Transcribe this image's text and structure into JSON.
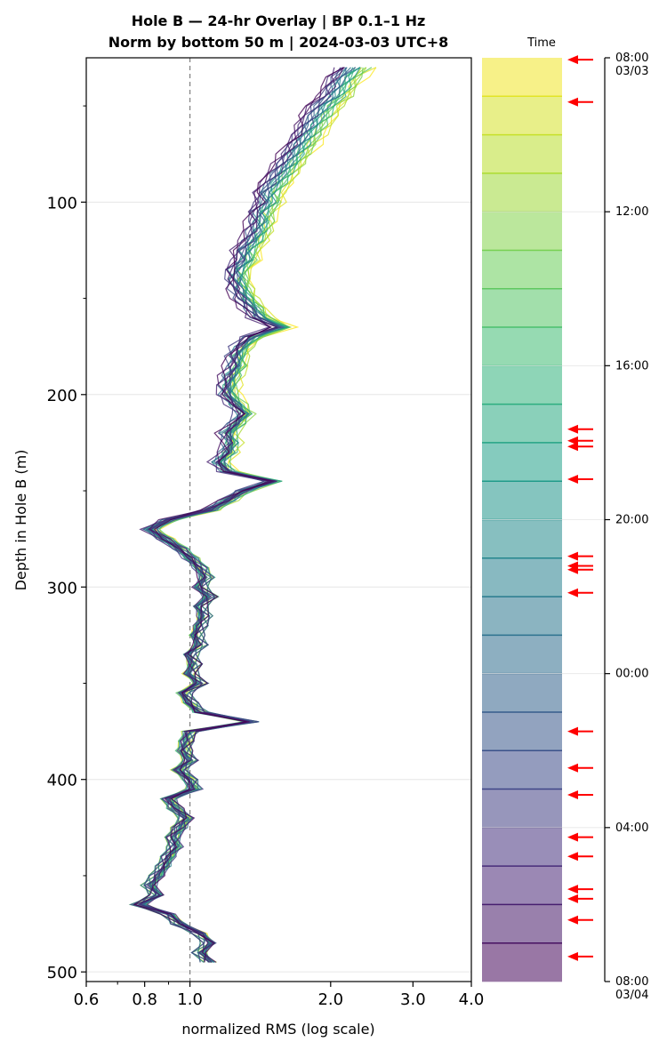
{
  "title_line1": "Hole B — 24-hr Overlay  |  BP 0.1–1 Hz",
  "title_line2": "Norm by bottom 50 m  |  2024-03-03 UTC+8",
  "colorbar_title": "Time",
  "colors": {
    "viridis": [
      "#440154",
      "#482878",
      "#3e4989",
      "#31688e",
      "#26828e",
      "#1f9e89",
      "#35b779",
      "#6ece58",
      "#b5de2b",
      "#fde725"
    ],
    "arrow": "#ff0000",
    "reference_line": "#808080",
    "grid": "#e6e6e6"
  },
  "chart_data": {
    "type": "line",
    "title": "Hole B — 24-hr Overlay  |  BP 0.1–1 Hz\nNorm by bottom 50 m  |  2024-03-03 UTC+8",
    "xlabel": "normalized RMS  (log scale)",
    "ylabel": "Depth in Hole B (m)",
    "xscale": "log",
    "xlim": [
      0.6,
      4.0
    ],
    "ylim": [
      505,
      25
    ],
    "y_inverted": true,
    "x_ticks": [
      "0.6",
      "0.8",
      "1.0",
      "2.0",
      "3.0",
      "4.0"
    ],
    "x_tick_values": [
      0.6,
      0.8,
      1.0,
      2.0,
      3.0,
      4.0
    ],
    "y_ticks": [
      "100",
      "200",
      "300",
      "400",
      "500"
    ],
    "y_tick_values": [
      100,
      200,
      300,
      400,
      500
    ],
    "grid": "horizontal",
    "reference_line_x": 1.0,
    "curve_count": 24,
    "representative_profile": {
      "depth": [
        30,
        35,
        40,
        45,
        50,
        55,
        60,
        65,
        70,
        75,
        80,
        85,
        90,
        95,
        100,
        105,
        110,
        115,
        120,
        125,
        130,
        135,
        140,
        145,
        150,
        155,
        160,
        165,
        170,
        175,
        180,
        185,
        190,
        195,
        200,
        205,
        210,
        215,
        220,
        225,
        230,
        235,
        240,
        245,
        250,
        255,
        260,
        265,
        270,
        275,
        280,
        285,
        290,
        295,
        300,
        305,
        310,
        315,
        320,
        325,
        330,
        335,
        340,
        345,
        350,
        355,
        360,
        365,
        370,
        375,
        380,
        385,
        390,
        395,
        400,
        405,
        410,
        415,
        420,
        425,
        430,
        435,
        440,
        445,
        450,
        455,
        460,
        465,
        470,
        475,
        480,
        485,
        490,
        495
      ],
      "rms": [
        2.2,
        2.1,
        2.05,
        2.0,
        1.9,
        1.85,
        1.8,
        1.75,
        1.7,
        1.65,
        1.6,
        1.55,
        1.5,
        1.45,
        1.45,
        1.4,
        1.4,
        1.38,
        1.35,
        1.3,
        1.3,
        1.25,
        1.25,
        1.27,
        1.3,
        1.35,
        1.4,
        1.55,
        1.35,
        1.28,
        1.25,
        1.25,
        1.22,
        1.2,
        1.2,
        1.25,
        1.3,
        1.25,
        1.2,
        1.22,
        1.2,
        1.15,
        1.2,
        1.5,
        1.3,
        1.2,
        1.1,
        0.9,
        0.82,
        0.88,
        0.95,
        1.0,
        1.05,
        1.08,
        1.05,
        1.1,
        1.05,
        1.07,
        1.05,
        1.03,
        1.05,
        1.0,
        1.02,
        1.0,
        1.05,
        0.97,
        1.0,
        1.05,
        1.35,
        1.0,
        0.98,
        0.97,
        1.0,
        0.95,
        1.0,
        1.02,
        0.9,
        0.93,
        0.98,
        0.95,
        0.92,
        0.93,
        0.9,
        0.88,
        0.85,
        0.82,
        0.85,
        0.78,
        0.9,
        0.95,
        1.05,
        1.1,
        1.05,
        1.1
      ]
    },
    "colorbar": {
      "label": "Time",
      "levels": 24,
      "tick_labels": [
        "08:00\n03/03",
        "12:00",
        "16:00",
        "20:00",
        "00:00",
        "04:00",
        "08:00\n03/04"
      ],
      "tick_hours": [
        0,
        4,
        8,
        12,
        16,
        20,
        24
      ]
    },
    "event_marker_hours": [
      0.05,
      1.15,
      9.65,
      9.95,
      10.1,
      10.95,
      12.95,
      13.2,
      13.3,
      13.9,
      17.5,
      18.45,
      19.15,
      20.25,
      20.75,
      21.6,
      21.85,
      22.4,
      23.35
    ]
  }
}
